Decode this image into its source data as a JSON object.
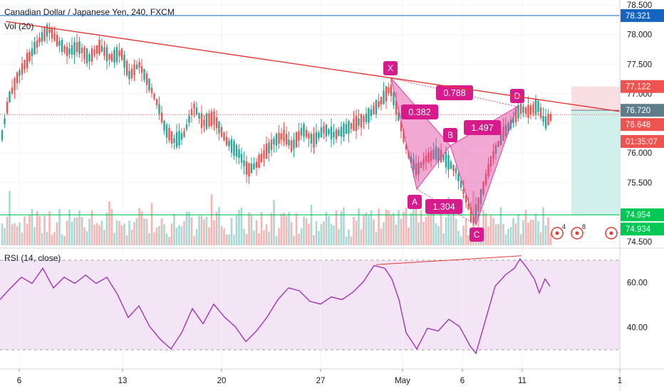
{
  "header": {
    "symbol_title": "Canadian Dollar / Japanese Yen, 240, FXCM",
    "volume_label": "Vol (20)",
    "rsi_label": "RSI (14, close)"
  },
  "colors": {
    "up": "#26a69a",
    "down": "#ef5350",
    "trendline": "#e53935",
    "pattern_fill": "#e040a0",
    "pattern_label_bg": "#d81b8c",
    "rsi_line": "#9c27b0",
    "rsi_band": "#f3e5f5",
    "level_blue": "#1565c0",
    "level_green": "#00c853"
  },
  "chart_data": [
    {
      "type": "candlestick",
      "title": "Canadian Dollar / Japanese Yen, 240, FXCM",
      "y_axis_ticks": [
        "74.500",
        "75.000",
        "75.500",
        "76.000",
        "76.500",
        "77.000",
        "77.500",
        "78.000",
        "78.500"
      ],
      "ylim": [
        74.5,
        78.5
      ],
      "x_axis_ticks": [
        "6",
        "13",
        "20",
        "27",
        "May",
        "6",
        "11",
        "1"
      ],
      "price_labels": [
        {
          "value": 78.321,
          "text": "78.321",
          "color": "#1565c0"
        },
        {
          "value": 77.122,
          "text": "77.122",
          "color": "#ef5350"
        },
        {
          "value": 76.72,
          "text": "76.720",
          "color": "#607d8b"
        },
        {
          "value": 76.648,
          "text": "76.648",
          "color": "#ef5350"
        },
        {
          "value": 76.0,
          "text": "01:35:07",
          "color": "#ef5350"
        },
        {
          "value": 74.954,
          "text": "74.954",
          "color": "#00c853"
        },
        {
          "value": 74.934,
          "text": "74.934",
          "color": "#00c853"
        }
      ],
      "harmonic_pattern": {
        "points": [
          {
            "label": "X",
            "value": 77.3
          },
          {
            "label": "A",
            "value": 75.4
          },
          {
            "label": "B",
            "value": 76.15
          },
          {
            "label": "C",
            "value": 74.7
          },
          {
            "label": "D",
            "value": 76.75
          }
        ],
        "ratios": [
          "0.788",
          "0.382",
          "1.497",
          "1.304"
        ]
      },
      "trendline": {
        "start": 78.15,
        "end": 76.7
      },
      "position_tool": {
        "entry": 76.72,
        "stop": 77.122,
        "target": 74.954
      },
      "event_markers": [
        "4",
        "8"
      ]
    },
    {
      "type": "volume",
      "title": "Vol (20)"
    },
    {
      "type": "line",
      "title": "RSI (14, close)",
      "y_axis_ticks": [
        "40.00",
        "60.00"
      ],
      "band": [
        30,
        70
      ],
      "ylim": [
        20,
        80
      ]
    }
  ]
}
